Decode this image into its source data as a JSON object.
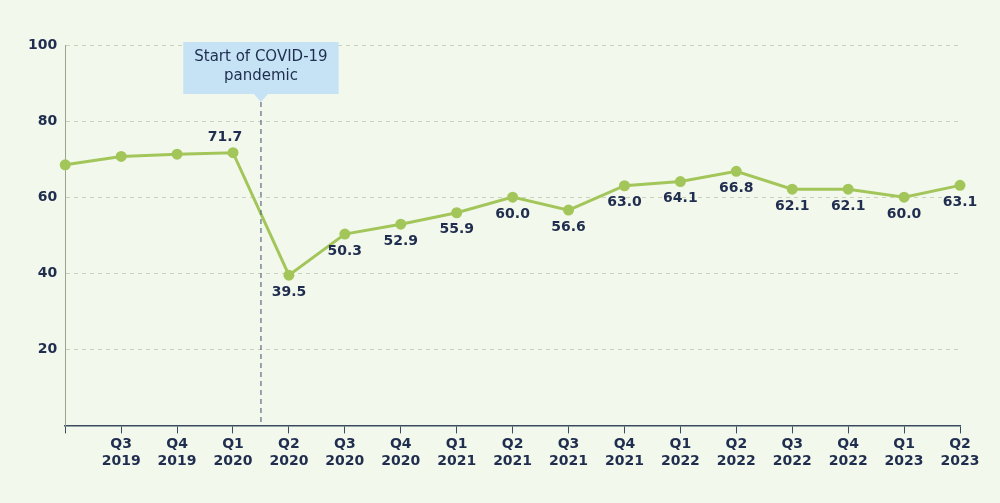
{
  "chart_data": {
    "type": "line",
    "categories": [
      null,
      "Q3 2019",
      "Q4 2019",
      "Q1 2020",
      "Q2 2020",
      "Q3 2020",
      "Q4 2020",
      "Q1 2021",
      "Q2 2021",
      "Q3 2021",
      "Q4 2021",
      "Q1 2022",
      "Q2 2022",
      "Q3 2022",
      "Q4 2022",
      "Q1 2023",
      "Q2 2023"
    ],
    "values": [
      68.5,
      70.7,
      71.3,
      71.7,
      39.5,
      50.3,
      52.9,
      55.9,
      60.0,
      56.6,
      63.0,
      64.1,
      66.8,
      62.1,
      62.1,
      60.0,
      63.1
    ],
    "value_labels": [
      null,
      null,
      null,
      "71.7",
      "39.5",
      "50.3",
      "52.9",
      "55.9",
      "60.0",
      "56.6",
      "63.0",
      "64.1",
      "66.8",
      "62.1",
      "62.1",
      "60.0",
      "63.1"
    ],
    "data_labels": true,
    "color": "#a3c65a",
    "marker": "circle",
    "ylim": [
      0,
      100
    ],
    "yticks": [
      20,
      40,
      60,
      80,
      100
    ],
    "grid": true,
    "annotations": [
      {
        "text": "Start of COVID-19 pandemic",
        "after": "Q1 2020"
      }
    ]
  }
}
